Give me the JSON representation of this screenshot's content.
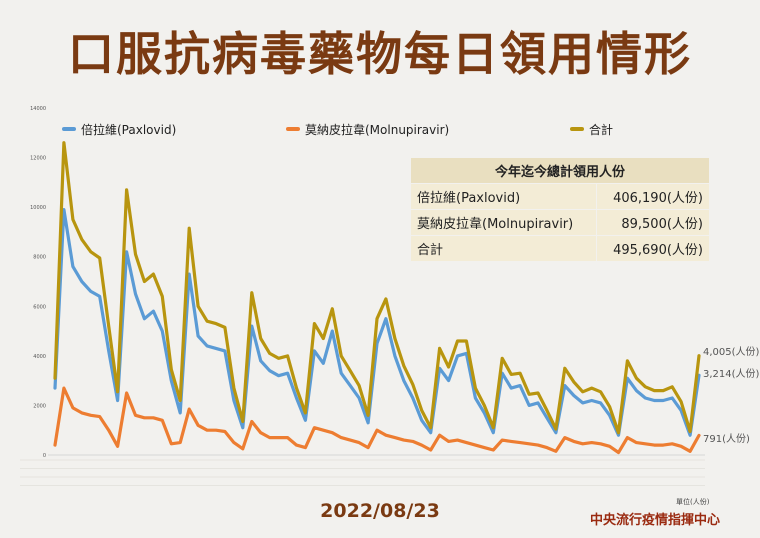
{
  "title": "口服抗病毒藥物每日領用情形",
  "date": "2022/08/23",
  "unit_note": "單位(人份)",
  "center": "中央流行疫情指揮中心",
  "colors": {
    "paxlovid": "#5b9bd5",
    "molnupiravir": "#ed7d31",
    "total": "#b8950f",
    "title": "#7a3a12"
  },
  "summary": {
    "header": "今年迄今總計領用人份",
    "rows": [
      {
        "label": "倍拉維(Paxlovid)",
        "value": "406,190(人份)"
      },
      {
        "label": "莫納皮拉韋(Molnupiravir)",
        "value": "89,500(人份)"
      },
      {
        "label": "合計",
        "value": "495,690(人份)"
      }
    ]
  },
  "end_labels": {
    "total": "4,005(人份)",
    "paxlovid": "3,214(人份)",
    "molnupiravir": "791(人份)"
  },
  "chart_data": {
    "type": "line",
    "title": "",
    "xlabel": "",
    "ylabel": "",
    "ylim": [
      0,
      14000
    ],
    "yticks": [
      0,
      2000,
      4000,
      6000,
      8000,
      10000,
      12000,
      14000
    ],
    "legend_position": "top",
    "grid": false,
    "series": [
      {
        "name": "倍拉維(Paxlovid)",
        "values": [
          2700,
          9900,
          7600,
          7000,
          6600,
          6400,
          4200,
          2200,
          8200,
          6500,
          5500,
          5800,
          5000,
          3000,
          1700,
          7300,
          4800,
          4400,
          4300,
          4200,
          2200,
          1100,
          5200,
          3800,
          3400,
          3200,
          3300,
          2300,
          1400,
          4200,
          3700,
          5000,
          3300,
          2800,
          2300,
          1300,
          4500,
          5500,
          4000,
          3000,
          2300,
          1400,
          900,
          3500,
          3000,
          4000,
          4100,
          2300,
          1700,
          900,
          3300,
          2700,
          2800,
          2000,
          2100,
          1500,
          900,
          2800,
          2400,
          2100,
          2200,
          2100,
          1600,
          800,
          3100,
          2600,
          2300,
          2200,
          2200,
          2300,
          1800,
          800,
          3214
        ]
      },
      {
        "name": "莫納皮拉韋(Molnupiravir)",
        "values": [
          400,
          2700,
          1900,
          1700,
          1600,
          1550,
          1000,
          350,
          2500,
          1600,
          1500,
          1500,
          1400,
          450,
          500,
          1850,
          1200,
          1000,
          1000,
          950,
          500,
          250,
          1350,
          900,
          700,
          700,
          700,
          400,
          300,
          1100,
          1000,
          900,
          700,
          600,
          500,
          300,
          1000,
          800,
          700,
          600,
          550,
          400,
          200,
          800,
          550,
          600,
          500,
          400,
          300,
          200,
          600,
          550,
          500,
          450,
          400,
          300,
          150,
          700,
          550,
          450,
          500,
          450,
          350,
          100,
          700,
          500,
          450,
          400,
          400,
          450,
          350,
          150,
          791
        ]
      },
      {
        "name": "合計",
        "values": [
          3100,
          12600,
          9500,
          8700,
          8200,
          7950,
          5200,
          2550,
          10700,
          8100,
          7000,
          7300,
          6400,
          3450,
          2200,
          9150,
          6000,
          5400,
          5300,
          5150,
          2700,
          1350,
          6550,
          4700,
          4100,
          3900,
          4000,
          2700,
          1700,
          5300,
          4700,
          5900,
          4000,
          3400,
          2800,
          1600,
          5500,
          6300,
          4700,
          3600,
          2850,
          1800,
          1100,
          4300,
          3550,
          4600,
          4600,
          2700,
          2000,
          1100,
          3900,
          3250,
          3300,
          2450,
          2500,
          1800,
          1050,
          3500,
          2950,
          2550,
          2700,
          2550,
          1950,
          900,
          3800,
          3100,
          2750,
          2600,
          2600,
          2750,
          2150,
          950,
          4005
        ]
      }
    ]
  }
}
